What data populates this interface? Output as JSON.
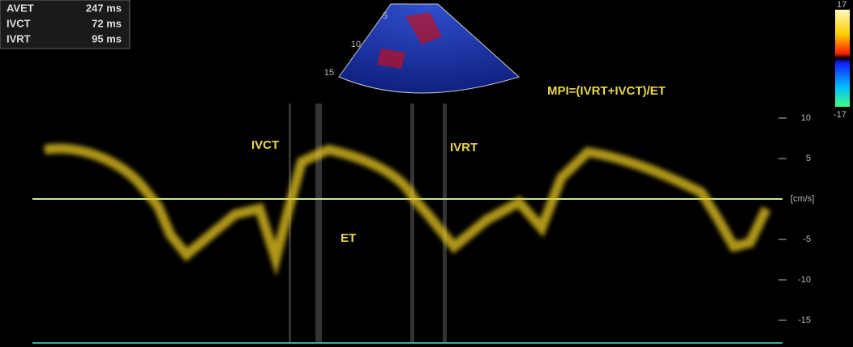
{
  "measurements": [
    {
      "label": "AVET",
      "value": "247 ms"
    },
    {
      "label": "IVCT",
      "value": "72 ms"
    },
    {
      "label": "IVRT",
      "value": "95 ms"
    }
  ],
  "annotations": {
    "ivct": "IVCT",
    "ivrt": "IVRT",
    "et": "ET",
    "formula": "MPI=(IVRT+IVCT)/ET"
  },
  "sector_depths": [
    5,
    10,
    15
  ],
  "velocity_scale": {
    "ticks": [
      10,
      5,
      -5,
      -10,
      -15
    ],
    "unit": "[cm/s]"
  },
  "color_scale": {
    "max": "17",
    "min": "-17"
  }
}
